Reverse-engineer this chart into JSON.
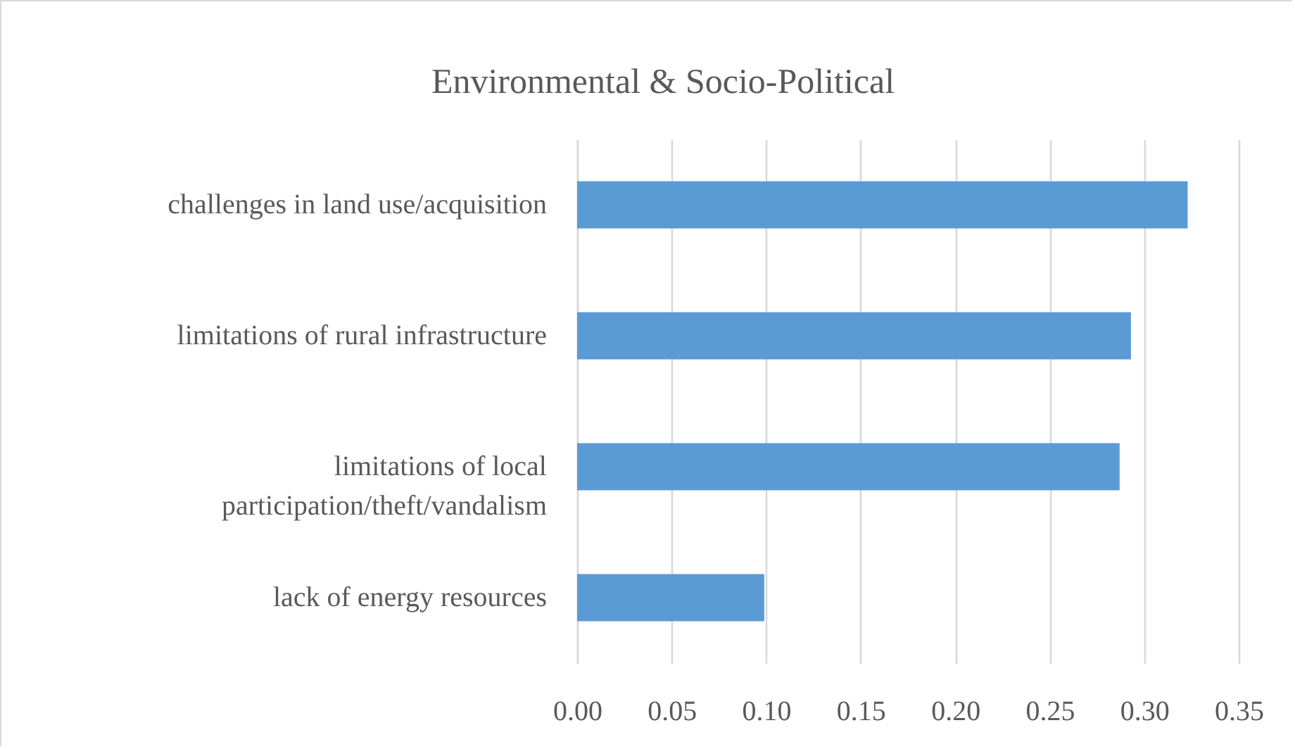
{
  "chart_data": {
    "type": "bar",
    "orientation": "horizontal",
    "title": "Environmental & Socio-Political",
    "categories": [
      "challenges in land use/acquisition",
      "limitations of rural infrastructure",
      "limitations of local participation/theft/vandalism",
      "lack of energy resources"
    ],
    "values": [
      0.323,
      0.293,
      0.287,
      0.099
    ],
    "color": "#5b9bd5",
    "xlim": [
      0,
      0.35
    ],
    "xticks": [
      {
        "value": 0,
        "label": "0.00"
      },
      {
        "value": 0.05,
        "label": "0.05"
      },
      {
        "value": 0.1,
        "label": "0.10"
      },
      {
        "value": 0.15,
        "label": "0.15"
      },
      {
        "value": 0.2,
        "label": "0.20"
      },
      {
        "value": 0.25,
        "label": "0.25"
      },
      {
        "value": 0.3,
        "label": "0.30"
      },
      {
        "value": 0.35,
        "label": "0.35"
      }
    ],
    "grid": "x"
  }
}
